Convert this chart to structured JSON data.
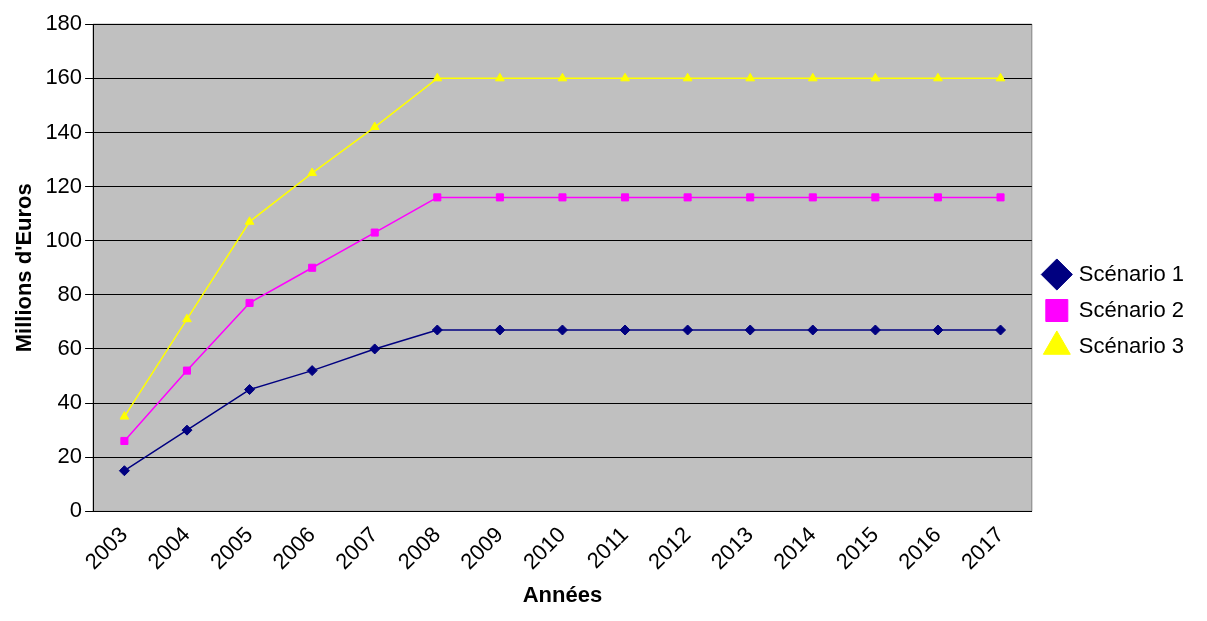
{
  "chart_data": {
    "type": "line",
    "xlabel": "Années",
    "ylabel": "Millions d'Euros",
    "categories": [
      "2003",
      "2004",
      "2005",
      "2006",
      "2007",
      "2008",
      "2009",
      "2010",
      "2011",
      "2012",
      "2013",
      "2014",
      "2015",
      "2016",
      "2017"
    ],
    "series": [
      {
        "name": "Scénario 1",
        "color": "#000080",
        "marker": "diamond",
        "values": [
          15,
          30,
          45,
          52,
          60,
          67,
          67,
          67,
          67,
          67,
          67,
          67,
          67,
          67,
          67
        ]
      },
      {
        "name": "Scénario 2",
        "color": "#ff00ff",
        "marker": "square",
        "values": [
          26,
          52,
          77,
          90,
          103,
          116,
          116,
          116,
          116,
          116,
          116,
          116,
          116,
          116,
          116
        ]
      },
      {
        "name": "Scénario 3",
        "color": "#ffff00",
        "marker": "triangle",
        "values": [
          35,
          71,
          107,
          125,
          142,
          160,
          160,
          160,
          160,
          160,
          160,
          160,
          160,
          160,
          160
        ]
      }
    ],
    "ylim": [
      0,
      180
    ],
    "yticks": [
      0,
      20,
      40,
      60,
      80,
      100,
      120,
      140,
      160,
      180
    ],
    "grid": "y",
    "legend": "right",
    "line_style": "solid"
  }
}
